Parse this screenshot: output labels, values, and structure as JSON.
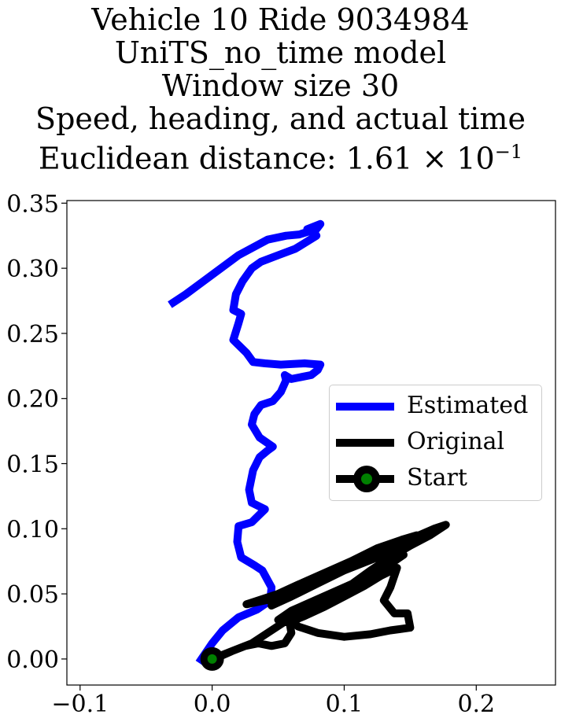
{
  "title": {
    "lines": [
      "Vehicle 10 Ride 9034984",
      "UniTS_no_time model",
      "Window size 30",
      "Speed, heading, and actual time"
    ],
    "distance_prefix": "Euclidean distance: 1.61",
    "distance_times": "×",
    "distance_base": "10",
    "distance_exp": "−1"
  },
  "colors": {
    "estimated": "#0000ff",
    "original": "#000000",
    "start_outer": "#000000",
    "start_inner": "#008000"
  },
  "legend": {
    "placement": "center-right",
    "entries": [
      "Estimated",
      "Original",
      "Start"
    ]
  },
  "chart_data": {
    "type": "line",
    "xlim": [
      -0.11,
      0.26
    ],
    "ylim": [
      -0.02,
      0.352
    ],
    "x_ticks": [
      -0.1,
      0.0,
      0.1,
      0.2
    ],
    "x_tick_labels": [
      "−0.1",
      "0.0",
      "0.1",
      "0.2"
    ],
    "y_ticks": [
      0.0,
      0.05,
      0.1,
      0.15,
      0.2,
      0.25,
      0.3,
      0.35
    ],
    "y_tick_labels": [
      "0.00",
      "0.05",
      "0.10",
      "0.15",
      "0.20",
      "0.25",
      "0.30",
      "0.35"
    ],
    "grid": false,
    "series": [
      {
        "name": "Estimated",
        "x": [
          -0.01,
          0.0,
          0.008,
          0.02,
          0.034,
          0.044,
          0.045,
          0.038,
          0.032,
          0.022,
          0.019,
          0.02,
          0.03,
          0.035,
          0.04,
          0.03,
          0.028,
          0.031,
          0.036,
          0.042,
          0.046,
          0.036,
          0.03,
          0.032,
          0.037,
          0.046,
          0.052,
          0.056,
          0.055,
          0.06,
          0.075,
          0.08,
          0.082,
          0.07,
          0.052,
          0.04,
          0.031,
          0.026,
          0.016,
          0.02,
          0.022,
          0.016,
          0.018,
          0.023,
          0.03,
          0.037,
          0.05,
          0.063,
          0.079,
          0.076,
          0.072,
          0.082,
          0.079,
          0.066,
          0.056,
          0.042,
          0.02,
          0.0,
          -0.02,
          -0.032
        ],
        "y": [
          -0.003,
          0.012,
          0.022,
          0.032,
          0.038,
          0.045,
          0.055,
          0.068,
          0.072,
          0.078,
          0.09,
          0.102,
          0.105,
          0.11,
          0.115,
          0.12,
          0.13,
          0.145,
          0.155,
          0.16,
          0.163,
          0.17,
          0.18,
          0.188,
          0.195,
          0.198,
          0.205,
          0.214,
          0.218,
          0.215,
          0.218,
          0.222,
          0.226,
          0.227,
          0.226,
          0.227,
          0.228,
          0.235,
          0.245,
          0.258,
          0.265,
          0.268,
          0.28,
          0.29,
          0.3,
          0.305,
          0.31,
          0.315,
          0.325,
          0.33,
          0.33,
          0.334,
          0.33,
          0.326,
          0.325,
          0.322,
          0.31,
          0.295,
          0.28,
          0.272
        ]
      },
      {
        "name": "Original",
        "x": [
          0.0,
          0.015,
          0.03,
          0.045,
          0.06,
          0.075,
          0.09,
          0.105,
          0.12,
          0.135,
          0.15,
          0.165,
          0.177,
          0.168,
          0.15,
          0.13,
          0.11,
          0.09,
          0.07,
          0.055,
          0.045,
          0.06,
          0.08,
          0.1,
          0.12,
          0.14,
          0.155,
          0.145,
          0.125,
          0.105,
          0.085,
          0.065,
          0.05,
          0.035,
          0.026,
          0.045,
          0.065,
          0.085,
          0.105,
          0.125,
          0.14,
          0.145,
          0.135,
          0.12,
          0.1,
          0.08,
          0.06,
          0.05,
          0.058,
          0.07,
          0.085,
          0.1,
          0.115,
          0.128,
          0.14,
          0.135,
          0.13,
          0.138,
          0.148,
          0.15,
          0.135,
          0.12,
          0.1,
          0.08,
          0.065,
          0.058,
          0.06,
          0.055,
          0.045,
          0.035,
          0.025,
          0.015,
          0.006,
          0.0
        ],
        "y": [
          0.0,
          0.006,
          0.012,
          0.022,
          0.032,
          0.04,
          0.048,
          0.057,
          0.068,
          0.078,
          0.087,
          0.095,
          0.103,
          0.1,
          0.092,
          0.084,
          0.074,
          0.064,
          0.053,
          0.046,
          0.041,
          0.048,
          0.058,
          0.068,
          0.078,
          0.088,
          0.095,
          0.092,
          0.085,
          0.075,
          0.066,
          0.057,
          0.05,
          0.045,
          0.042,
          0.046,
          0.054,
          0.062,
          0.07,
          0.078,
          0.085,
          0.08,
          0.073,
          0.064,
          0.055,
          0.046,
          0.037,
          0.03,
          0.028,
          0.033,
          0.04,
          0.048,
          0.056,
          0.064,
          0.07,
          0.055,
          0.045,
          0.035,
          0.035,
          0.024,
          0.022,
          0.019,
          0.017,
          0.02,
          0.025,
          0.032,
          0.02,
          0.012,
          0.01,
          0.012,
          0.01,
          0.006,
          0.002,
          0.0
        ]
      },
      {
        "name": "Start",
        "x": [
          0.0
        ],
        "y": [
          0.0
        ]
      }
    ]
  }
}
